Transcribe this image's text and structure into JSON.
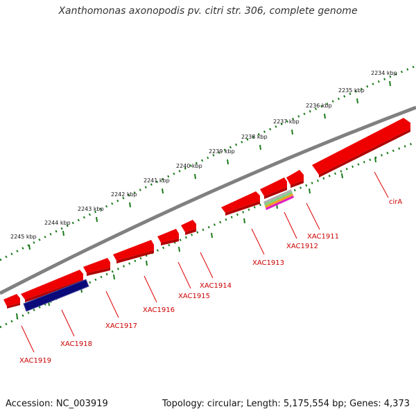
{
  "title": "Xanthomonas axonopodis pv. citri str. 306, complete genome",
  "footer": {
    "accession": "Accession: NC_003919",
    "topology": "Topology: circular; Length: 5,175,554 bp; Genes: 4,373"
  },
  "colors": {
    "gene": "#ee0000",
    "backbone": "#808080",
    "ticks": "#1a7a1a",
    "highlight_bar": "#0a0a7a",
    "label": "#cc0000"
  },
  "kbp_labels": [
    "2234 kbp",
    "2235 kbp",
    "2236 kbp",
    "2237 kbp",
    "2238 kbp",
    "2239 kbp",
    "2240 kbp",
    "2241 kbp",
    "2242 kbp",
    "2243 kbp",
    "2244 kbp",
    "2245 kbp"
  ],
  "genes": [
    "cirA",
    "XAC1911",
    "XAC1912",
    "XAC1913",
    "XAC1914",
    "XAC1915",
    "XAC1916",
    "XAC1917",
    "XAC1918",
    "XAC1919"
  ]
}
